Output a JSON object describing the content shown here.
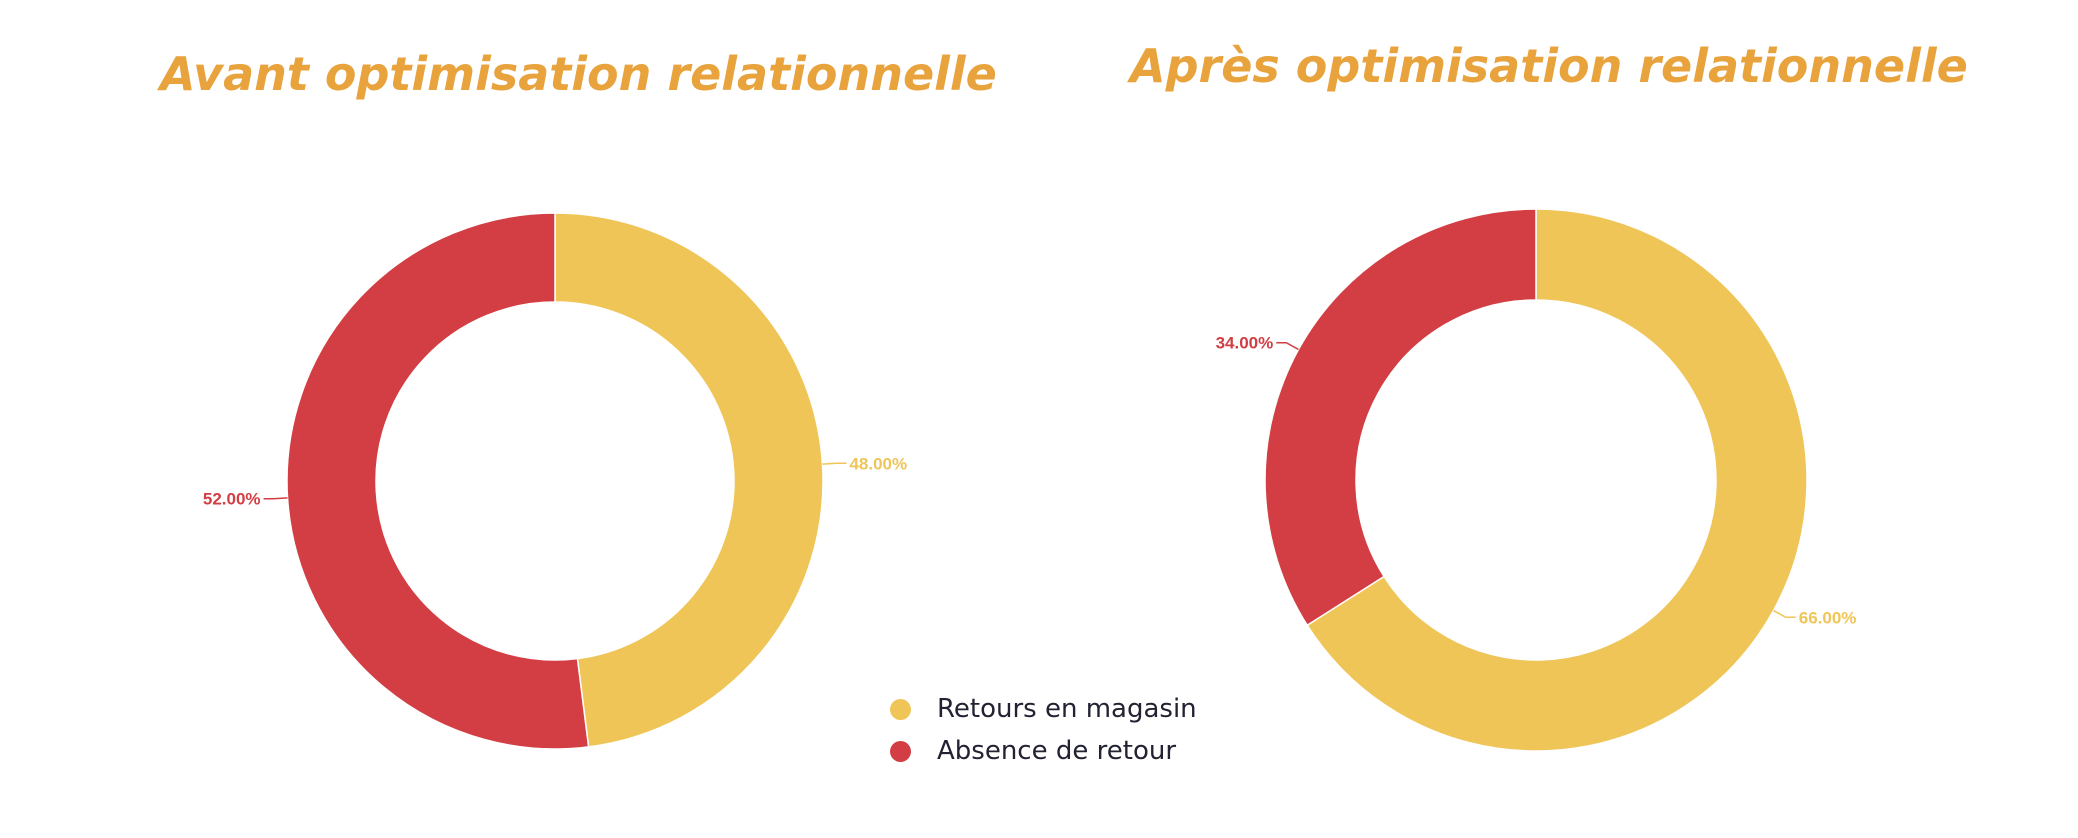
{
  "colors": {
    "retours": "#F0C558",
    "absence": "#D23E43",
    "title": "#E8A33D"
  },
  "legend": [
    {
      "label": "Retours en magasin",
      "color": "#F0C558"
    },
    {
      "label": "Absence de retour",
      "color": "#D23E43"
    }
  ],
  "chart_data": [
    {
      "type": "pie",
      "title": "Avant optimisation relationnelle",
      "slices": [
        {
          "name": "Retours en magasin",
          "value": 48.0,
          "label": "48.00%",
          "color": "#F0C558"
        },
        {
          "name": "Absence de retour",
          "value": 52.0,
          "label": "52.00%",
          "color": "#D23E43"
        }
      ],
      "donut": true
    },
    {
      "type": "pie",
      "title": "Après optimisation relationnelle",
      "slices": [
        {
          "name": "Retours en magasin",
          "value": 66.0,
          "label": "66.00%",
          "color": "#F0C558"
        },
        {
          "name": "Absence de retour",
          "value": 34.0,
          "label": "34.00%",
          "color": "#D23E43"
        }
      ],
      "donut": true
    }
  ]
}
